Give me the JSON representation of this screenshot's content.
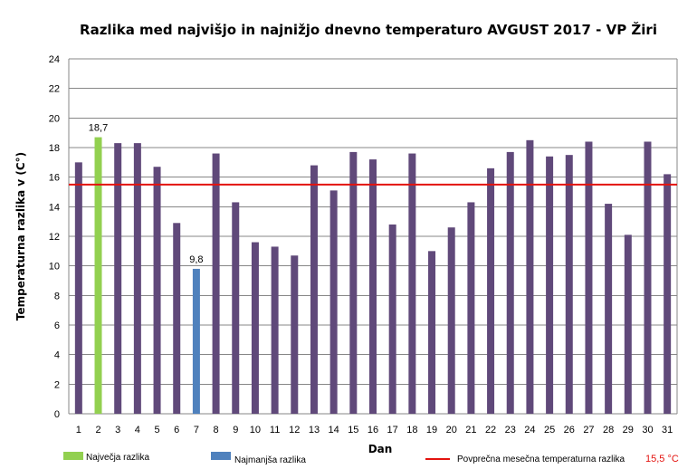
{
  "chart_data": {
    "type": "bar",
    "title": "Razlika med najvišjo  in najnižjo  dnevno  temperaturo  AVGUST 2017 - VP Žiri",
    "xlabel": "Dan",
    "ylabel": "Temperaturna razlika v (C°)",
    "ylim": [
      0,
      24
    ],
    "yticks": [
      "0",
      "2",
      "4",
      "6",
      "8",
      "10",
      "12",
      "14",
      "16",
      "18",
      "20",
      "22",
      "24"
    ],
    "categories": [
      "1",
      "2",
      "3",
      "4",
      "5",
      "6",
      "7",
      "8",
      "9",
      "10",
      "11",
      "12",
      "13",
      "14",
      "15",
      "16",
      "17",
      "18",
      "19",
      "20",
      "21",
      "22",
      "23",
      "24",
      "25",
      "26",
      "27",
      "28",
      "29",
      "30",
      "31"
    ],
    "values": [
      17.0,
      18.7,
      18.3,
      18.3,
      16.7,
      12.9,
      9.8,
      17.6,
      14.3,
      11.6,
      11.3,
      10.7,
      16.8,
      15.1,
      17.7,
      17.2,
      12.8,
      17.6,
      11.0,
      12.6,
      14.3,
      16.6,
      17.7,
      18.5,
      17.4,
      17.5,
      18.4,
      14.2,
      12.1,
      18.4,
      16.2
    ],
    "data_labels": [
      {
        "day": "2",
        "text": "18,7"
      },
      {
        "day": "7",
        "text": "9,8"
      }
    ],
    "colors": {
      "default_bar": "#60497a",
      "max_bar": "#92d050",
      "min_bar": "#4f81bd",
      "average_line": "#e3130f",
      "gridline": "#878787"
    },
    "max_day": "2",
    "min_day": "7",
    "average": 15.5,
    "legend": {
      "max_label": "Največja razlika",
      "min_label": "Najmanjša razlika",
      "average_label": "Povprečna mesečna temperaturna razlika",
      "average_value": "15,5 °C"
    }
  }
}
